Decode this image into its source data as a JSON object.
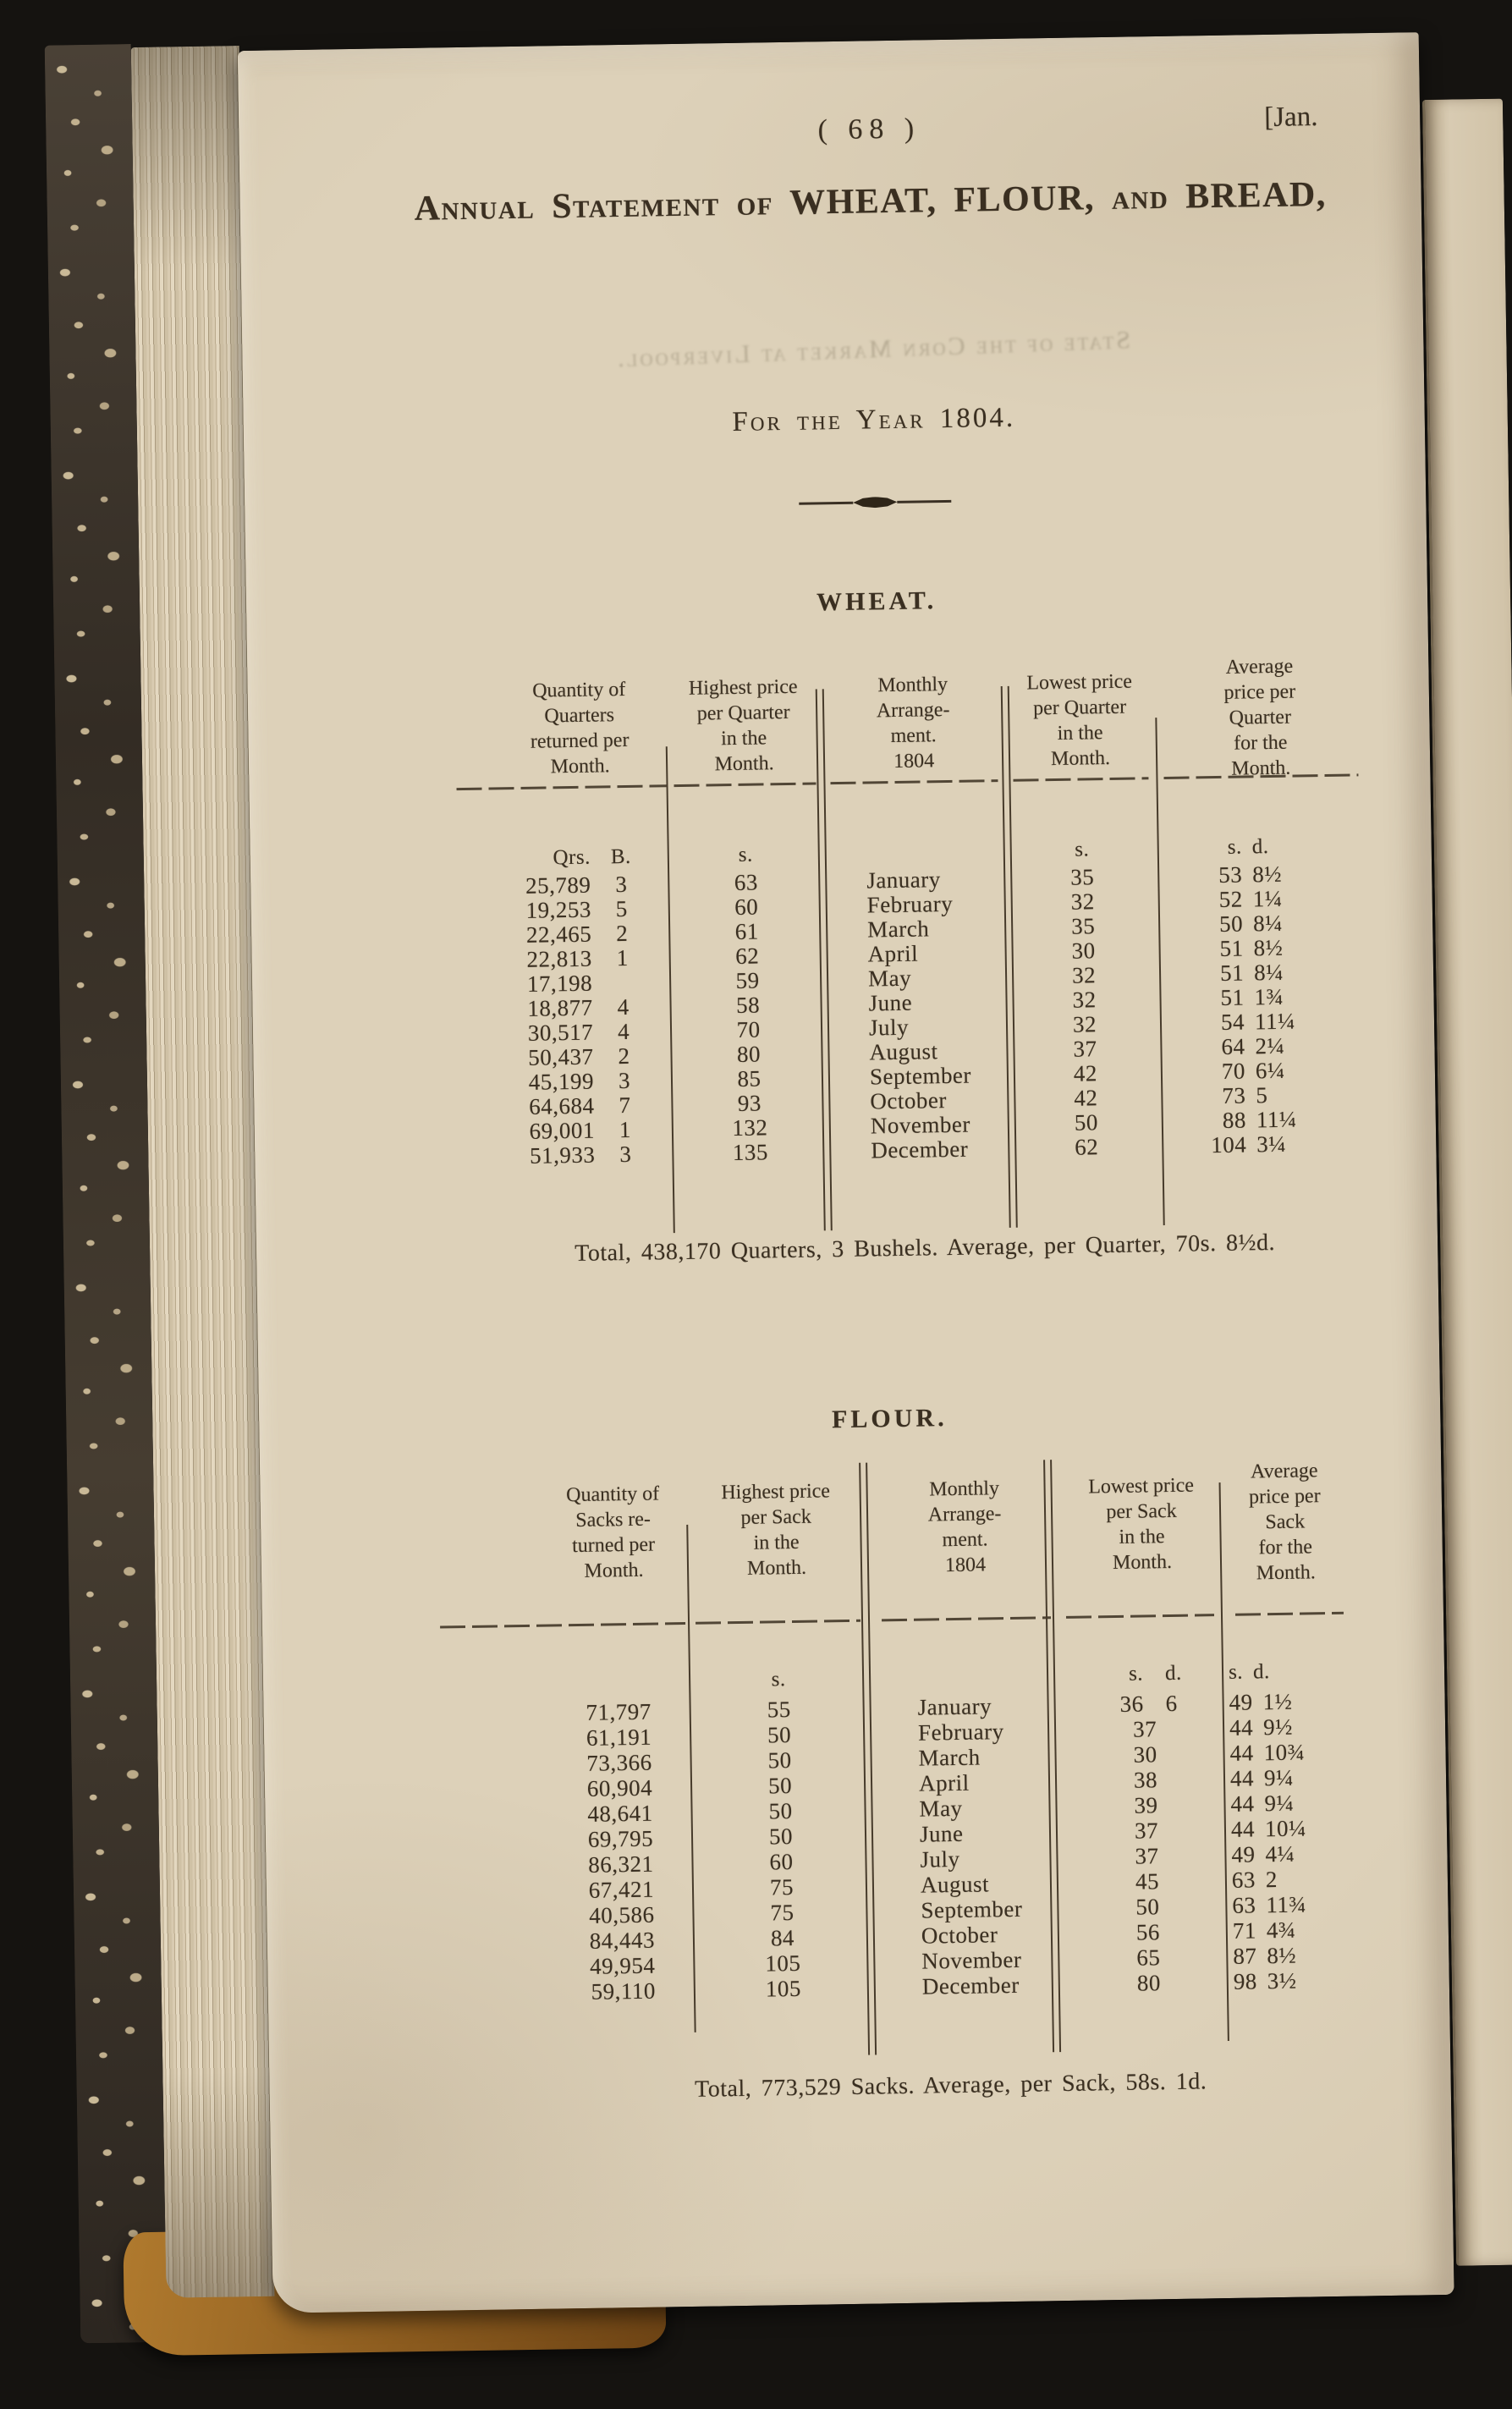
{
  "page": {
    "page_number": "(  68  )",
    "header_right": "[Jan.",
    "title_line1": "Annual Statement of WHEAT, FLOUR, and BREAD,",
    "title_line2": "For the Year 1804.",
    "ghost_text": "State of the Corn Market at Liverpool."
  },
  "units": {
    "qrs": "Qrs.",
    "bushels": "B.",
    "s": "s.",
    "d": "d."
  },
  "wheat": {
    "section_title": "WHEAT.",
    "columns": [
      [
        "Quantity of",
        "Quarters",
        "returned per",
        "Month."
      ],
      [
        "Highest price",
        "per Quarter",
        "in the",
        "Month."
      ],
      [
        "Monthly",
        "Arrange-",
        "ment.",
        "1804"
      ],
      [
        "Lowest price",
        "per Quarter",
        "in the",
        "Month."
      ],
      [
        "Average",
        "price per",
        "Quarter",
        "for the",
        "Month."
      ]
    ],
    "rows": [
      {
        "month": "January",
        "quantity": "25,789",
        "bushels": "3",
        "highest": "63",
        "lowest_s": "35",
        "lowest_d": "",
        "avg_s": "53",
        "avg_d": "8½"
      },
      {
        "month": "February",
        "quantity": "19,253",
        "bushels": "5",
        "highest": "60",
        "lowest_s": "32",
        "lowest_d": "",
        "avg_s": "52",
        "avg_d": "1¼"
      },
      {
        "month": "March",
        "quantity": "22,465",
        "bushels": "2",
        "highest": "61",
        "lowest_s": "35",
        "lowest_d": "",
        "avg_s": "50",
        "avg_d": "8¼"
      },
      {
        "month": "April",
        "quantity": "22,813",
        "bushels": "1",
        "highest": "62",
        "lowest_s": "30",
        "lowest_d": "",
        "avg_s": "51",
        "avg_d": "8½"
      },
      {
        "month": "May",
        "quantity": "17,198",
        "bushels": "",
        "highest": "59",
        "lowest_s": "32",
        "lowest_d": "",
        "avg_s": "51",
        "avg_d": "8¼"
      },
      {
        "month": "June",
        "quantity": "18,877",
        "bushels": "4",
        "highest": "58",
        "lowest_s": "32",
        "lowest_d": "",
        "avg_s": "51",
        "avg_d": "1¾"
      },
      {
        "month": "July",
        "quantity": "30,517",
        "bushels": "4",
        "highest": "70",
        "lowest_s": "32",
        "lowest_d": "",
        "avg_s": "54",
        "avg_d": "11¼"
      },
      {
        "month": "August",
        "quantity": "50,437",
        "bushels": "2",
        "highest": "80",
        "lowest_s": "37",
        "lowest_d": "",
        "avg_s": "64",
        "avg_d": "2¼"
      },
      {
        "month": "September",
        "quantity": "45,199",
        "bushels": "3",
        "highest": "85",
        "lowest_s": "42",
        "lowest_d": "",
        "avg_s": "70",
        "avg_d": "6¼"
      },
      {
        "month": "October",
        "quantity": "64,684",
        "bushels": "7",
        "highest": "93",
        "lowest_s": "42",
        "lowest_d": "",
        "avg_s": "73",
        "avg_d": "5"
      },
      {
        "month": "November",
        "quantity": "69,001",
        "bushels": "1",
        "highest": "132",
        "lowest_s": "50",
        "lowest_d": "",
        "avg_s": "88",
        "avg_d": "11¼"
      },
      {
        "month": "December",
        "quantity": "51,933",
        "bushels": "3",
        "highest": "135",
        "lowest_s": "62",
        "lowest_d": "",
        "avg_s": "104",
        "avg_d": "3¼"
      }
    ],
    "total": "Total, 438,170 Quarters, 3 Bushels.   Average, per Quarter, 70s. 8½d."
  },
  "flour": {
    "section_title": "FLOUR.",
    "columns": [
      [
        "Quantity of",
        "Sacks re-",
        "turned per",
        "Month."
      ],
      [
        "Highest price",
        "per Sack",
        "in the",
        "Month."
      ],
      [
        "Monthly",
        "Arrange-",
        "ment.",
        "1804"
      ],
      [
        "Lowest price",
        "per Sack",
        "in the",
        "Month."
      ],
      [
        "Average",
        "price per",
        "Sack",
        "for the",
        "Month."
      ]
    ],
    "rows": [
      {
        "month": "January",
        "quantity": "71,797",
        "bushels": "",
        "highest": "55",
        "lowest_s": "36",
        "lowest_d": "6",
        "avg_s": "49",
        "avg_d": "1½"
      },
      {
        "month": "February",
        "quantity": "61,191",
        "bushels": "",
        "highest": "50",
        "lowest_s": "37",
        "lowest_d": "",
        "avg_s": "44",
        "avg_d": "9½"
      },
      {
        "month": "March",
        "quantity": "73,366",
        "bushels": "",
        "highest": "50",
        "lowest_s": "30",
        "lowest_d": "",
        "avg_s": "44",
        "avg_d": "10¾"
      },
      {
        "month": "April",
        "quantity": "60,904",
        "bushels": "",
        "highest": "50",
        "lowest_s": "38",
        "lowest_d": "",
        "avg_s": "44",
        "avg_d": "9¼"
      },
      {
        "month": "May",
        "quantity": "48,641",
        "bushels": "",
        "highest": "50",
        "lowest_s": "39",
        "lowest_d": "",
        "avg_s": "44",
        "avg_d": "9¼"
      },
      {
        "month": "June",
        "quantity": "69,795",
        "bushels": "",
        "highest": "50",
        "lowest_s": "37",
        "lowest_d": "",
        "avg_s": "44",
        "avg_d": "10¼"
      },
      {
        "month": "July",
        "quantity": "86,321",
        "bushels": "",
        "highest": "60",
        "lowest_s": "37",
        "lowest_d": "",
        "avg_s": "49",
        "avg_d": "4¼"
      },
      {
        "month": "August",
        "quantity": "67,421",
        "bushels": "",
        "highest": "75",
        "lowest_s": "45",
        "lowest_d": "",
        "avg_s": "63",
        "avg_d": "2"
      },
      {
        "month": "September",
        "quantity": "40,586",
        "bushels": "",
        "highest": "75",
        "lowest_s": "50",
        "lowest_d": "",
        "avg_s": "63",
        "avg_d": "11¾"
      },
      {
        "month": "October",
        "quantity": "84,443",
        "bushels": "",
        "highest": "84",
        "lowest_s": "56",
        "lowest_d": "",
        "avg_s": "71",
        "avg_d": "4¾"
      },
      {
        "month": "November",
        "quantity": "49,954",
        "bushels": "",
        "highest": "105",
        "lowest_s": "65",
        "lowest_d": "",
        "avg_s": "87",
        "avg_d": "8½"
      },
      {
        "month": "December",
        "quantity": "59,110",
        "bushels": "",
        "highest": "105",
        "lowest_s": "80",
        "lowest_d": "",
        "avg_s": "98",
        "avg_d": "3½"
      }
    ],
    "total": "Total, 773,529 Sacks.   Average, per Sack, 58s. 1d."
  }
}
